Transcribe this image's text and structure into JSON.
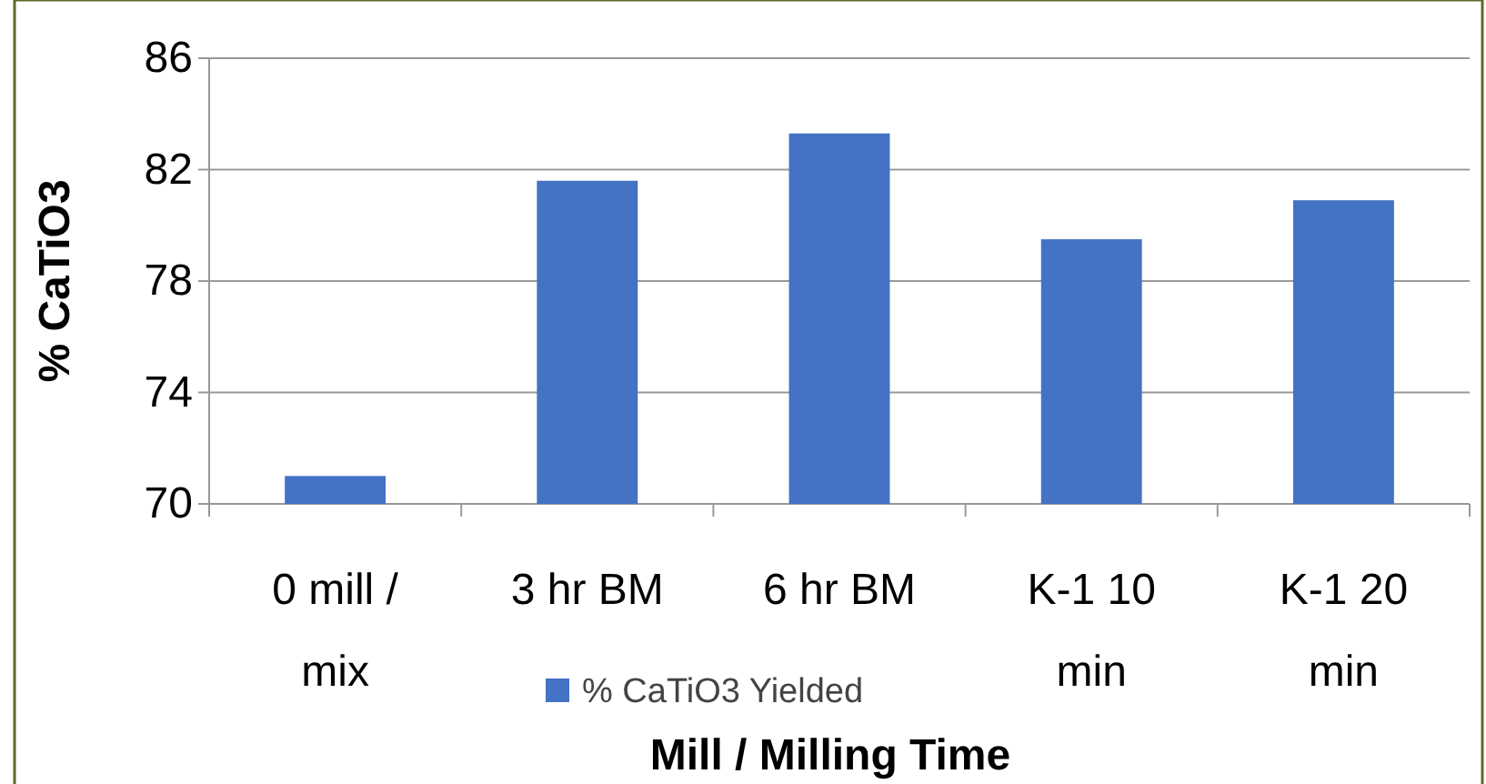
{
  "chart_data": {
    "type": "bar",
    "xlabel": "Mill / Milling Time",
    "ylabel": "% CaTiO3",
    "categories": [
      "0 mill / mix",
      "3 hr BM",
      "6 hr BM",
      "K-1 10 min",
      "K-1 20 min"
    ],
    "series": [
      {
        "name": "% CaTiO3 Yielded",
        "color": "#4472c4",
        "values": [
          71.0,
          81.6,
          83.3,
          79.5,
          80.9
        ]
      }
    ],
    "ylim": [
      70,
      86
    ],
    "yticks": [
      70,
      74,
      78,
      82,
      86
    ],
    "grid": "y",
    "legend": "bottom"
  }
}
